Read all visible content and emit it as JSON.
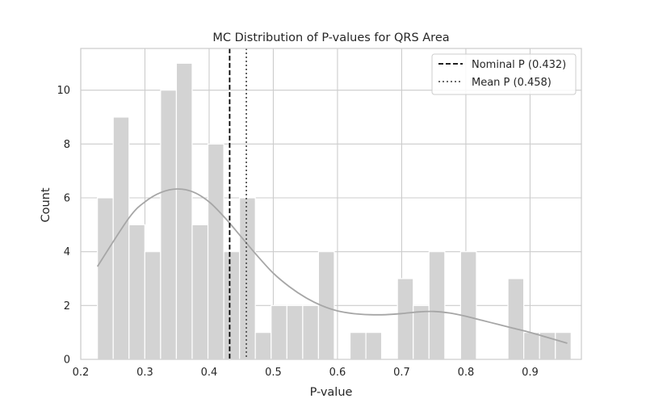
{
  "chart_data": {
    "type": "bar",
    "title": "MC Distribution of P-values for QRS Area",
    "xlabel": "P-value",
    "ylabel": "Count",
    "xlim": [
      0.2,
      0.98
    ],
    "ylim": [
      0,
      11.55
    ],
    "x_ticks": [
      0.2,
      0.3,
      0.4,
      0.5,
      0.6,
      0.7,
      0.8,
      0.9
    ],
    "x_tick_labels": [
      "0.2",
      "0.3",
      "0.4",
      "0.5",
      "0.6",
      "0.7",
      "0.8",
      "0.9"
    ],
    "y_ticks": [
      0,
      2,
      4,
      6,
      8,
      10
    ],
    "y_tick_labels": [
      "0",
      "2",
      "4",
      "6",
      "8",
      "10"
    ],
    "grid": true,
    "legend_position": "top-right",
    "bin_edges": [
      0.226,
      0.2506,
      0.2752,
      0.2998,
      0.3244,
      0.349,
      0.3736,
      0.3982,
      0.4228,
      0.4474,
      0.472,
      0.4966,
      0.5212,
      0.5458,
      0.5704,
      0.595,
      0.6196,
      0.6442,
      0.6688,
      0.6934,
      0.718,
      0.7426,
      0.7672,
      0.7918,
      0.8164,
      0.841,
      0.8656,
      0.8902,
      0.9148,
      0.9394,
      0.964
    ],
    "counts": [
      6,
      9,
      5,
      4,
      10,
      11,
      5,
      8,
      4,
      6,
      1,
      2,
      2,
      2,
      4,
      0,
      1,
      1,
      0,
      3,
      2,
      4,
      0,
      4,
      0,
      0,
      3,
      1,
      1,
      1
    ],
    "kde_x": [
      0.226,
      0.275,
      0.3,
      0.325,
      0.35,
      0.375,
      0.4,
      0.425,
      0.45,
      0.475,
      0.5,
      0.525,
      0.55,
      0.575,
      0.6,
      0.625,
      0.65,
      0.675,
      0.7,
      0.725,
      0.75,
      0.775,
      0.8,
      0.825,
      0.85,
      0.875,
      0.9,
      0.925,
      0.958
    ],
    "kde_y": [
      3.45,
      5.25,
      5.85,
      6.2,
      6.33,
      6.22,
      5.85,
      5.25,
      4.55,
      3.85,
      3.2,
      2.7,
      2.3,
      2.0,
      1.8,
      1.7,
      1.66,
      1.66,
      1.7,
      1.76,
      1.78,
      1.72,
      1.6,
      1.45,
      1.3,
      1.15,
      1.0,
      0.83,
      0.6
    ],
    "bar_color": "#d3d3d3",
    "kde_color": "#a6a6a6",
    "reference_lines": [
      {
        "label": "Nominal P (0.432)",
        "x": 0.432,
        "style": "dashed",
        "color": "#000000"
      },
      {
        "label": "Mean P (0.458)",
        "x": 0.458,
        "style": "dotted",
        "color": "#555555"
      }
    ]
  }
}
